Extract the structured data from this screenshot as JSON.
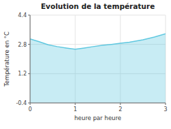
{
  "chart_data": {
    "type": "area",
    "title": "Evolution de la température",
    "xlabel": "heure par heure",
    "ylabel": "Température en °C",
    "x": [
      0,
      0.2,
      0.4,
      0.6,
      0.8,
      1.0,
      1.2,
      1.4,
      1.6,
      1.8,
      2.0,
      2.2,
      2.5,
      2.75,
      3.0
    ],
    "values": [
      3.1,
      2.95,
      2.78,
      2.68,
      2.6,
      2.53,
      2.6,
      2.68,
      2.75,
      2.8,
      2.86,
      2.92,
      3.05,
      3.2,
      3.38
    ],
    "color": "#60c8e0",
    "xlim": [
      0,
      3
    ],
    "ylim": [
      -0.4,
      4.4
    ],
    "xticks": [
      0,
      1,
      2,
      3
    ],
    "yticks": [
      -0.4,
      1.2,
      2.8,
      4.4
    ],
    "grid": true
  }
}
